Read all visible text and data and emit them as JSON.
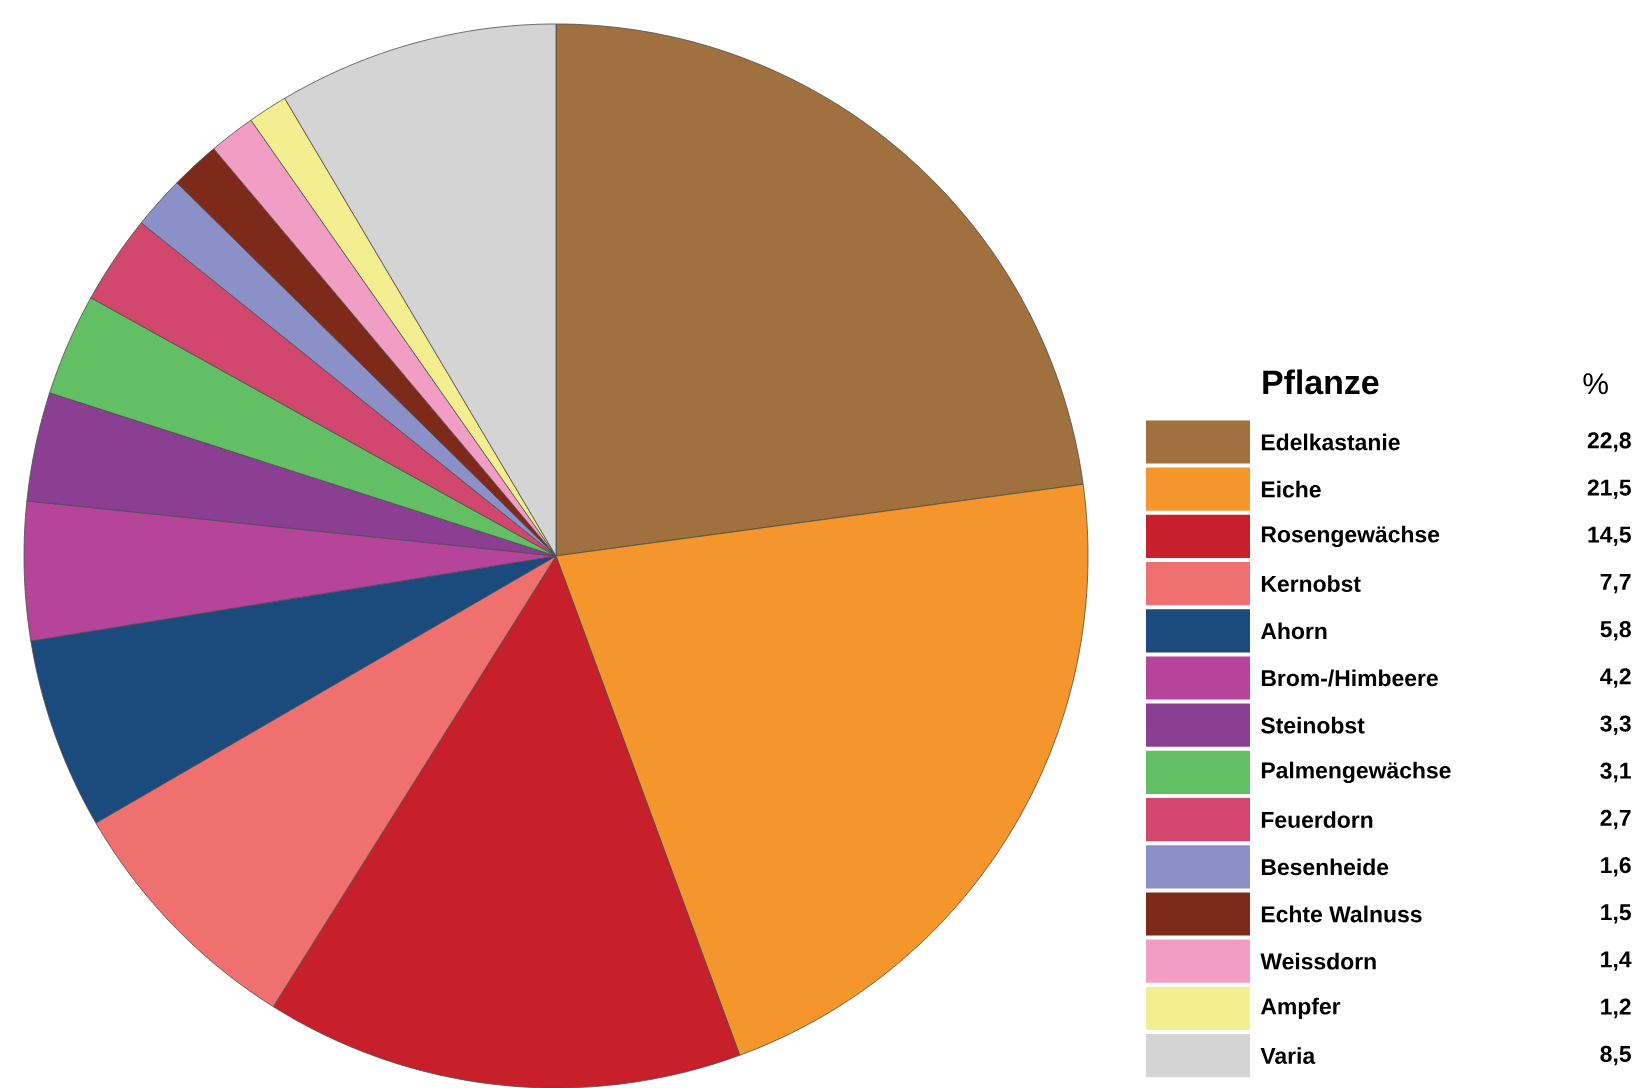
{
  "chart_data": {
    "type": "pie",
    "categories": [
      "Edelkastanie",
      "Eiche",
      "Rosengewächse",
      "Kernobst",
      "Ahorn",
      "Brom-/Himbeere",
      "Steinobst",
      "Palmengewächse",
      "Feuerdorn",
      "Besenheide",
      "Echte Walnuss",
      "Weissdorn",
      "Ampfer",
      "Varia"
    ],
    "values": [
      22.8,
      21.5,
      14.5,
      7.7,
      5.8,
      4.2,
      3.3,
      3.1,
      2.7,
      1.6,
      1.5,
      1.4,
      1.2,
      8.5
    ],
    "value_labels": [
      "22,8",
      "21,5",
      "14,5",
      "7,7",
      "5,8",
      "4,2",
      "3,3",
      "3,1",
      "2,7",
      "1,6",
      "1,5",
      "1,4",
      "1,2",
      "8,5"
    ],
    "colors": [
      "#a0703f",
      "#f4962b",
      "#c8202a",
      "#f07070",
      "#1b4b7c",
      "#b5449a",
      "#8a3f93",
      "#63bf64",
      "#d1476e",
      "#8b90c8",
      "#7d2a1b",
      "#f29ec4",
      "#f3ee90",
      "#d4d4d4"
    ],
    "legend": "right",
    "legend_title": "Pflanze",
    "annotations": [
      "%"
    ]
  }
}
